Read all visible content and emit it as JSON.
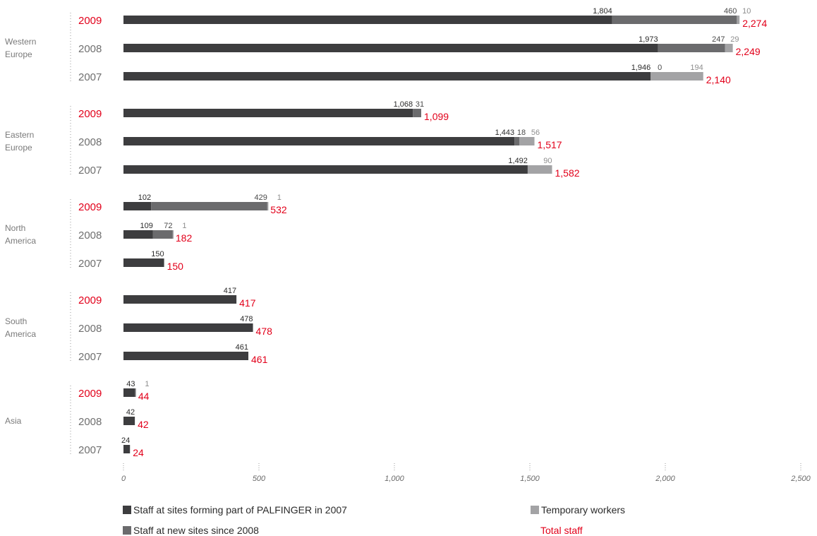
{
  "chart_data": {
    "type": "bar",
    "orientation": "horizontal",
    "stacked": true,
    "xlim": [
      0,
      2500
    ],
    "x_ticks": [
      "0",
      "500",
      "1,000",
      "1,500",
      "2,000",
      "2,500"
    ],
    "grid": false,
    "legend_position": "bottom",
    "colors": {
      "staff_2007": "#3d3d3f",
      "new_sites": "#6b6b6d",
      "temporary": "#a3a3a5",
      "total": "#e2001a",
      "year_label": "#6f6f6f",
      "region_label": "#7a7a7a"
    },
    "series": [
      {
        "name": "Staff at sites forming part of PALFINGER in 2007"
      },
      {
        "name": "Staff at new sites since 2008"
      },
      {
        "name": "Temporary workers"
      }
    ],
    "total_label": "Total staff",
    "regions": [
      {
        "name": "Western\nEurope",
        "rows": [
          {
            "year": "2009",
            "values": [
              1804,
              460,
              10
            ],
            "labels": [
              "1,804",
              "460",
              "10"
            ],
            "total": "2,274"
          },
          {
            "year": "2008",
            "values": [
              1973,
              247,
              29
            ],
            "labels": [
              "1,973",
              "247",
              "29"
            ],
            "total": "2,249"
          },
          {
            "year": "2007",
            "values": [
              1946,
              0,
              194
            ],
            "labels": [
              "1,946",
              "0",
              "194"
            ],
            "total": "2,140"
          }
        ]
      },
      {
        "name": "Eastern\nEurope",
        "rows": [
          {
            "year": "2009",
            "values": [
              1068,
              31,
              0
            ],
            "labels": [
              "1,068",
              "31",
              ""
            ],
            "total": "1,099"
          },
          {
            "year": "2008",
            "values": [
              1443,
              18,
              56
            ],
            "labels": [
              "1,443",
              "18",
              "56"
            ],
            "total": "1,517"
          },
          {
            "year": "2007",
            "values": [
              1492,
              0,
              90
            ],
            "labels": [
              "1,492",
              "",
              "90"
            ],
            "total": "1,582"
          }
        ]
      },
      {
        "name": "North\nAmerica",
        "rows": [
          {
            "year": "2009",
            "values": [
              102,
              429,
              1
            ],
            "labels": [
              "102",
              "429",
              "1"
            ],
            "total": "532"
          },
          {
            "year": "2008",
            "values": [
              109,
              72,
              1
            ],
            "labels": [
              "109",
              "72",
              "1"
            ],
            "total": "182"
          },
          {
            "year": "2007",
            "values": [
              150,
              0,
              0
            ],
            "labels": [
              "150",
              "",
              ""
            ],
            "total": "150"
          }
        ]
      },
      {
        "name": "South\nAmerica",
        "rows": [
          {
            "year": "2009",
            "values": [
              417,
              0,
              0
            ],
            "labels": [
              "417",
              "",
              ""
            ],
            "total": "417"
          },
          {
            "year": "2008",
            "values": [
              478,
              0,
              0
            ],
            "labels": [
              "478",
              "",
              ""
            ],
            "total": "478"
          },
          {
            "year": "2007",
            "values": [
              461,
              0,
              0
            ],
            "labels": [
              "461",
              "",
              ""
            ],
            "total": "461"
          }
        ]
      },
      {
        "name": "Asia",
        "rows": [
          {
            "year": "2009",
            "values": [
              43,
              0,
              1
            ],
            "labels": [
              "43",
              "",
              "1"
            ],
            "total": "44"
          },
          {
            "year": "2008",
            "values": [
              42,
              0,
              0
            ],
            "labels": [
              "42",
              "",
              ""
            ],
            "total": "42"
          },
          {
            "year": "2007",
            "values": [
              24,
              0,
              0
            ],
            "labels": [
              "24",
              "",
              ""
            ],
            "total": "24"
          }
        ]
      }
    ]
  }
}
